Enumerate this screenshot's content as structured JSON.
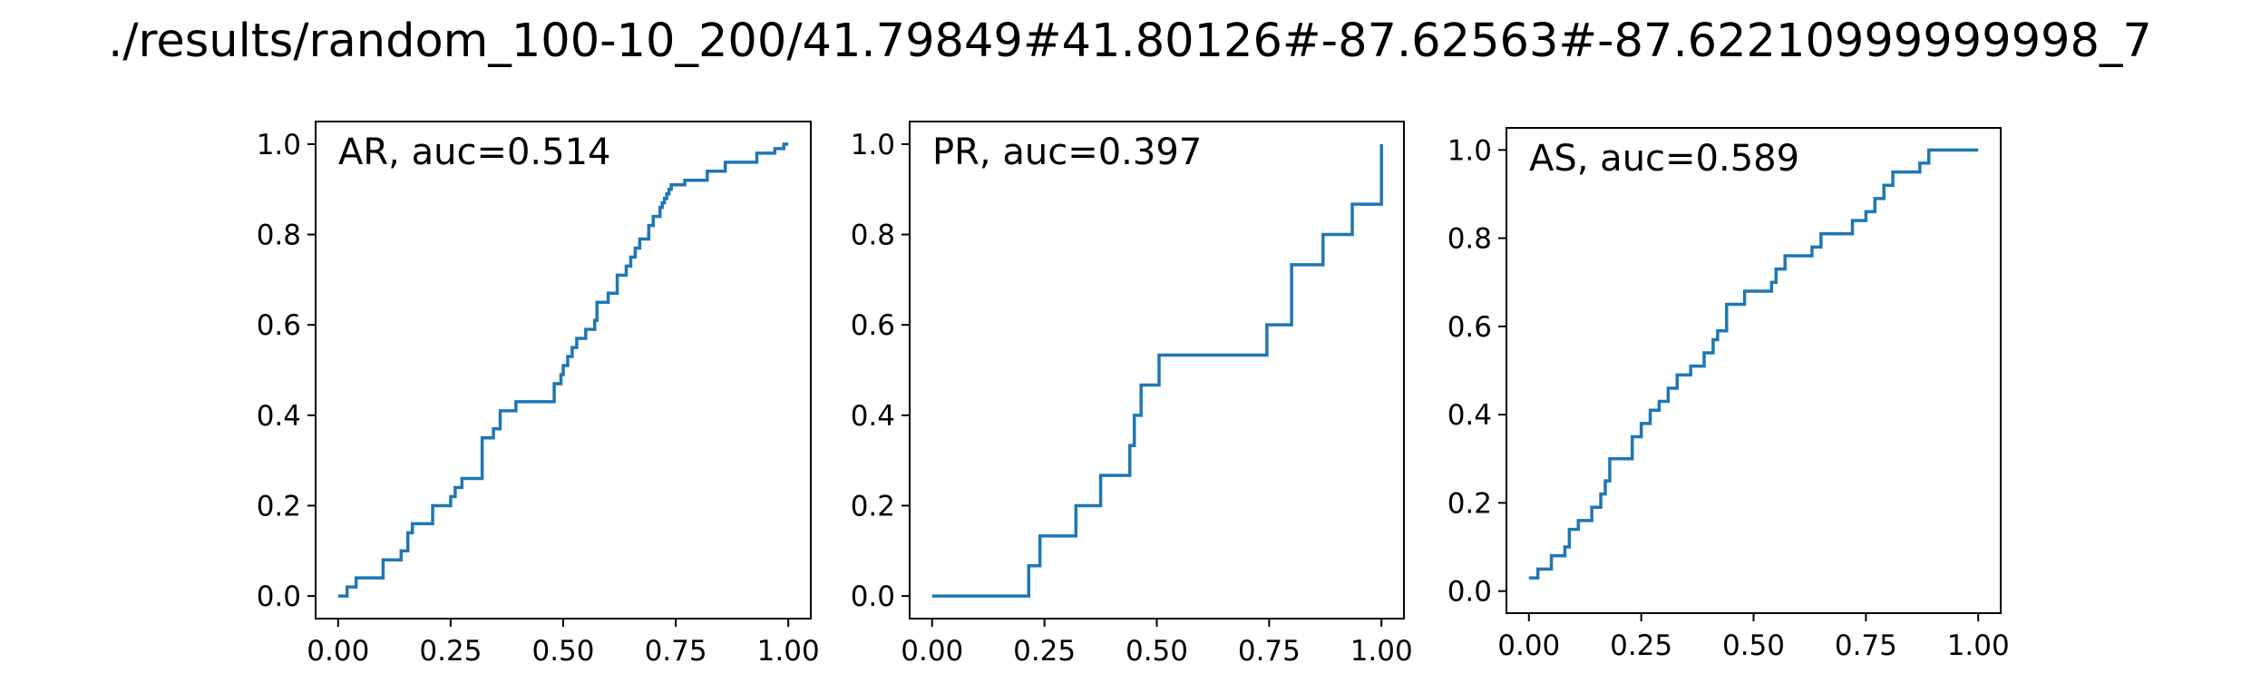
{
  "figure": {
    "suptitle": "./results/random_100-10_200/41.79849#41.80126#-87.62563#-87.62210999999998_7"
  },
  "chart_data": [
    {
      "type": "line",
      "title": "AR, auc=0.514",
      "xlabel": "",
      "ylabel": "",
      "xlim": [
        -0.05,
        1.05
      ],
      "ylim": [
        -0.05,
        1.05
      ],
      "xticks": [
        0.0,
        0.25,
        0.5,
        0.75,
        1.0
      ],
      "xtick_labels": [
        "0.00",
        "0.25",
        "0.50",
        "0.75",
        "1.00"
      ],
      "yticks": [
        0.0,
        0.2,
        0.4,
        0.6,
        0.8,
        1.0
      ],
      "ytick_labels": [
        "0.0",
        "0.2",
        "0.4",
        "0.6",
        "0.8",
        "1.0"
      ],
      "grid": false,
      "series": [
        {
          "color": "#1f77b4",
          "x": [
            0.0,
            0.02,
            0.02,
            0.04,
            0.04,
            0.06,
            0.06,
            0.1,
            0.1,
            0.14,
            0.14,
            0.155,
            0.155,
            0.165,
            0.165,
            0.21,
            0.21,
            0.25,
            0.25,
            0.26,
            0.26,
            0.275,
            0.275,
            0.32,
            0.32,
            0.345,
            0.345,
            0.36,
            0.36,
            0.395,
            0.395,
            0.48,
            0.48,
            0.495,
            0.495,
            0.5,
            0.5,
            0.51,
            0.51,
            0.52,
            0.52,
            0.53,
            0.53,
            0.55,
            0.55,
            0.57,
            0.57,
            0.575,
            0.575,
            0.6,
            0.6,
            0.62,
            0.62,
            0.64,
            0.64,
            0.65,
            0.65,
            0.66,
            0.66,
            0.67,
            0.67,
            0.69,
            0.69,
            0.7,
            0.7,
            0.715,
            0.715,
            0.72,
            0.72,
            0.725,
            0.725,
            0.73,
            0.73,
            0.735,
            0.735,
            0.74,
            0.74,
            0.77,
            0.77,
            0.82,
            0.82,
            0.86,
            0.86,
            0.93,
            0.93,
            0.97,
            0.97,
            0.99,
            0.99,
            1.0
          ],
          "y": [
            0.0,
            0.0,
            0.02,
            0.02,
            0.04,
            0.04,
            0.04,
            0.04,
            0.08,
            0.08,
            0.1,
            0.1,
            0.14,
            0.14,
            0.16,
            0.16,
            0.2,
            0.2,
            0.22,
            0.22,
            0.24,
            0.24,
            0.26,
            0.26,
            0.35,
            0.35,
            0.37,
            0.37,
            0.41,
            0.41,
            0.43,
            0.43,
            0.47,
            0.47,
            0.49,
            0.49,
            0.51,
            0.51,
            0.53,
            0.53,
            0.55,
            0.55,
            0.57,
            0.57,
            0.59,
            0.59,
            0.61,
            0.61,
            0.65,
            0.65,
            0.67,
            0.67,
            0.71,
            0.71,
            0.73,
            0.73,
            0.75,
            0.75,
            0.77,
            0.77,
            0.79,
            0.79,
            0.82,
            0.82,
            0.84,
            0.84,
            0.86,
            0.86,
            0.87,
            0.87,
            0.88,
            0.88,
            0.89,
            0.89,
            0.9,
            0.9,
            0.91,
            0.91,
            0.92,
            0.92,
            0.94,
            0.94,
            0.96,
            0.96,
            0.98,
            0.98,
            0.99,
            0.99,
            1.0,
            1.0
          ]
        }
      ]
    },
    {
      "type": "line",
      "title": "PR, auc=0.397",
      "xlabel": "",
      "ylabel": "",
      "xlim": [
        -0.05,
        1.05
      ],
      "ylim": [
        -0.05,
        1.05
      ],
      "xticks": [
        0.0,
        0.25,
        0.5,
        0.75,
        1.0
      ],
      "xtick_labels": [
        "0.00",
        "0.25",
        "0.50",
        "0.75",
        "1.00"
      ],
      "yticks": [
        0.0,
        0.2,
        0.4,
        0.6,
        0.8,
        1.0
      ],
      "ytick_labels": [
        "0.0",
        "0.2",
        "0.4",
        "0.6",
        "0.8",
        "1.0"
      ],
      "grid": false,
      "series": [
        {
          "color": "#1f77b4",
          "x": [
            0.0,
            0.215,
            0.215,
            0.24,
            0.24,
            0.32,
            0.32,
            0.375,
            0.375,
            0.44,
            0.44,
            0.45,
            0.45,
            0.465,
            0.465,
            0.505,
            0.505,
            0.745,
            0.745,
            0.8,
            0.8,
            0.87,
            0.87,
            0.935,
            0.935,
            1.0,
            1.0
          ],
          "y": [
            0.0,
            0.0,
            0.067,
            0.067,
            0.133,
            0.133,
            0.2,
            0.2,
            0.267,
            0.267,
            0.333,
            0.333,
            0.4,
            0.4,
            0.467,
            0.467,
            0.533,
            0.533,
            0.6,
            0.6,
            0.733,
            0.733,
            0.8,
            0.8,
            0.867,
            0.867,
            1.0
          ]
        }
      ]
    },
    {
      "type": "line",
      "title": "AS, auc=0.589",
      "xlabel": "",
      "ylabel": "",
      "xlim": [
        -0.05,
        1.05
      ],
      "ylim": [
        -0.05,
        1.05
      ],
      "xticks": [
        0.0,
        0.25,
        0.5,
        0.75,
        1.0
      ],
      "xtick_labels": [
        "0.00",
        "0.25",
        "0.50",
        "0.75",
        "1.00"
      ],
      "yticks": [
        0.0,
        0.2,
        0.4,
        0.6,
        0.8,
        1.0
      ],
      "ytick_labels": [
        "0.0",
        "0.2",
        "0.4",
        "0.6",
        "0.8",
        "1.0"
      ],
      "grid": false,
      "series": [
        {
          "color": "#1f77b4",
          "x": [
            0.0,
            0.02,
            0.02,
            0.05,
            0.05,
            0.08,
            0.08,
            0.09,
            0.09,
            0.11,
            0.11,
            0.14,
            0.14,
            0.16,
            0.16,
            0.17,
            0.17,
            0.18,
            0.18,
            0.23,
            0.23,
            0.25,
            0.25,
            0.27,
            0.27,
            0.29,
            0.29,
            0.31,
            0.31,
            0.33,
            0.33,
            0.36,
            0.36,
            0.39,
            0.39,
            0.41,
            0.41,
            0.42,
            0.42,
            0.44,
            0.44,
            0.48,
            0.48,
            0.54,
            0.54,
            0.55,
            0.55,
            0.57,
            0.57,
            0.63,
            0.63,
            0.65,
            0.65,
            0.72,
            0.72,
            0.75,
            0.75,
            0.77,
            0.77,
            0.79,
            0.79,
            0.81,
            0.81,
            0.87,
            0.87,
            0.89,
            0.89,
            1.0
          ],
          "y": [
            0.03,
            0.03,
            0.05,
            0.05,
            0.08,
            0.08,
            0.1,
            0.1,
            0.14,
            0.14,
            0.16,
            0.16,
            0.19,
            0.19,
            0.22,
            0.22,
            0.25,
            0.25,
            0.3,
            0.3,
            0.35,
            0.35,
            0.38,
            0.38,
            0.41,
            0.41,
            0.43,
            0.43,
            0.46,
            0.46,
            0.49,
            0.49,
            0.51,
            0.51,
            0.54,
            0.54,
            0.57,
            0.57,
            0.59,
            0.59,
            0.65,
            0.65,
            0.68,
            0.68,
            0.7,
            0.7,
            0.73,
            0.73,
            0.76,
            0.76,
            0.78,
            0.78,
            0.81,
            0.81,
            0.84,
            0.84,
            0.86,
            0.86,
            0.89,
            0.89,
            0.92,
            0.92,
            0.95,
            0.95,
            0.97,
            0.97,
            1.0,
            1.0
          ]
        }
      ]
    }
  ]
}
